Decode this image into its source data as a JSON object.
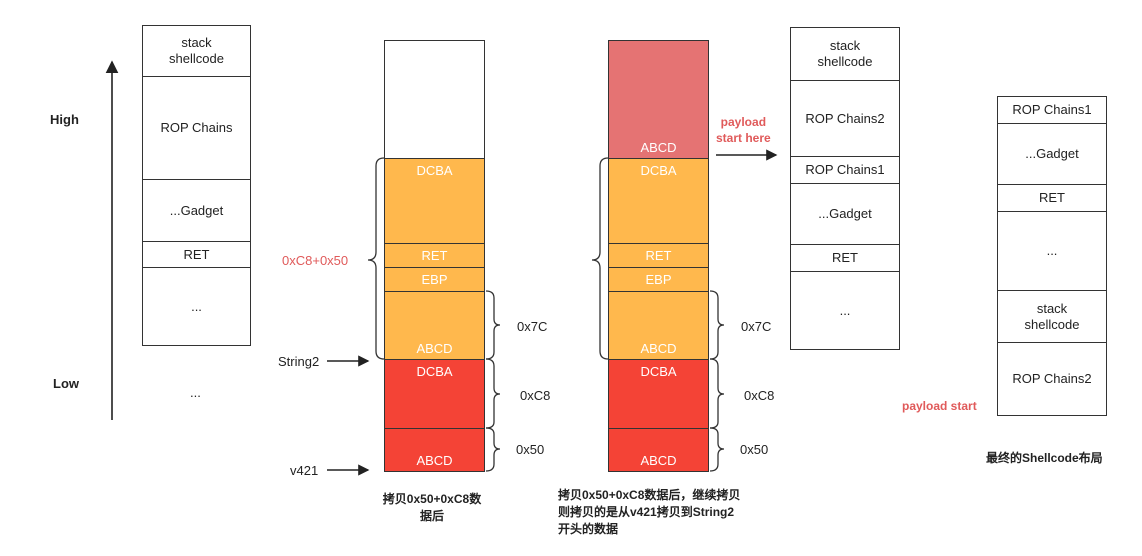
{
  "axis": {
    "high": "High",
    "low": "Low"
  },
  "stack1": {
    "cells": [
      "stack\nshellcode",
      "ROP Chains",
      "...Gadget",
      "RET",
      "..."
    ],
    "below": "..."
  },
  "stack2": {
    "cells": [
      "",
      "DCBA",
      "RET",
      "EBP",
      "ABCD",
      "DCBA",
      "ABCD"
    ],
    "label_total": "0xC8+0x50",
    "label_string2": "String2",
    "label_v421": "v421",
    "size_7c": "0x7C",
    "size_c8": "0xC8",
    "size_50": "0x50",
    "caption": "拷贝0x50+0xC8数\n据后"
  },
  "stack3": {
    "cells": [
      "ABCD",
      "DCBA",
      "RET",
      "EBP",
      "ABCD",
      "DCBA",
      "ABCD"
    ],
    "size_7c": "0x7C",
    "size_c8": "0xC8",
    "size_50": "0x50",
    "caption": "拷贝0x50+0xC8数据后，继续拷贝\n则拷贝的是从v421拷贝到String2\n开头的数据"
  },
  "payload_start_here": "payload\nstart here",
  "stack4": {
    "cells": [
      "stack\nshellcode",
      "ROP Chains2",
      "ROP Chains1",
      "...Gadget",
      "RET",
      "..."
    ]
  },
  "stack5": {
    "cells": [
      "ROP Chains1",
      "...Gadget",
      "RET",
      "...",
      "stack\nshellcode",
      "ROP Chains2"
    ],
    "payload_start": "payload start",
    "caption": "最终的Shellcode布局"
  },
  "colors": {
    "orange": "#ffb84d",
    "red": "#f44336",
    "pink": "#e57373",
    "accent_text": "#e05a5a"
  }
}
